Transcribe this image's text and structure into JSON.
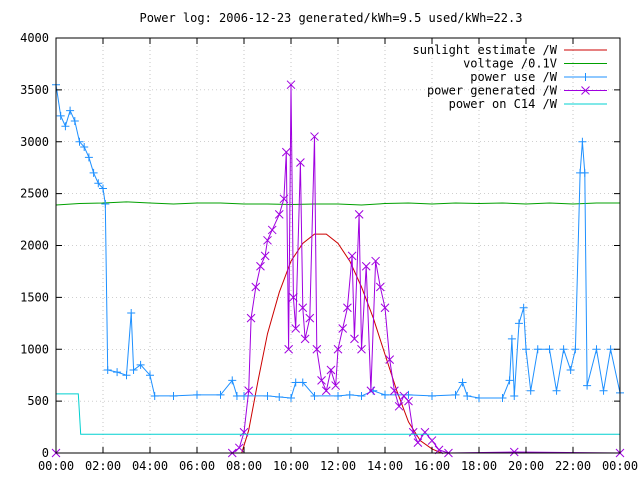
{
  "chart_data": {
    "type": "line",
    "title": "Power log: 2006-12-23 generated/kWh=9.5 used/kWh=22.3",
    "xlabel": "",
    "ylabel": "",
    "x_ticks": [
      "00:00",
      "02:00",
      "04:00",
      "06:00",
      "08:00",
      "10:00",
      "12:00",
      "14:00",
      "16:00",
      "18:00",
      "20:00",
      "22:00",
      "00:00"
    ],
    "xlim_hours": [
      0,
      24
    ],
    "y_ticks": [
      "0",
      "500",
      "1000",
      "1500",
      "2000",
      "2500",
      "3000",
      "3500",
      "4000"
    ],
    "ylim": [
      0,
      4000
    ],
    "grid": true,
    "legend_position": "top-right",
    "series": [
      {
        "name": "sunlight estimate /W",
        "color": "#cc0000",
        "marker": "none",
        "points": [
          [
            0,
            0
          ],
          [
            7.9,
            0
          ],
          [
            8.2,
            220
          ],
          [
            8.6,
            700
          ],
          [
            9.0,
            1150
          ],
          [
            9.5,
            1550
          ],
          [
            10.0,
            1850
          ],
          [
            10.5,
            2020
          ],
          [
            11.0,
            2110
          ],
          [
            11.5,
            2110
          ],
          [
            12.0,
            2020
          ],
          [
            12.5,
            1850
          ],
          [
            13.0,
            1600
          ],
          [
            13.5,
            1300
          ],
          [
            14.0,
            950
          ],
          [
            14.5,
            600
          ],
          [
            15.0,
            300
          ],
          [
            15.5,
            120
          ],
          [
            16.0,
            40
          ],
          [
            16.4,
            0
          ],
          [
            24,
            0
          ]
        ]
      },
      {
        "name": "voltage /0.1V",
        "color": "#00a000",
        "marker": "none",
        "points": [
          [
            0,
            2390
          ],
          [
            1,
            2405
          ],
          [
            2,
            2410
          ],
          [
            3,
            2420
          ],
          [
            4,
            2410
          ],
          [
            5,
            2400
          ],
          [
            6,
            2410
          ],
          [
            7,
            2410
          ],
          [
            8,
            2400
          ],
          [
            9,
            2400
          ],
          [
            10,
            2395
          ],
          [
            11,
            2400
          ],
          [
            12,
            2400
          ],
          [
            13,
            2390
          ],
          [
            14,
            2405
          ],
          [
            15,
            2410
          ],
          [
            16,
            2400
          ],
          [
            17,
            2410
          ],
          [
            18,
            2405
          ],
          [
            19,
            2410
          ],
          [
            20,
            2400
          ],
          [
            21,
            2410
          ],
          [
            22,
            2400
          ],
          [
            23,
            2410
          ],
          [
            24,
            2410
          ]
        ]
      },
      {
        "name": "power use /W",
        "color": "#1e90ff",
        "marker": "plus",
        "points": [
          [
            0,
            3550
          ],
          [
            0.2,
            3250
          ],
          [
            0.4,
            3150
          ],
          [
            0.6,
            3300
          ],
          [
            0.8,
            3200
          ],
          [
            1.0,
            3000
          ],
          [
            1.2,
            2950
          ],
          [
            1.4,
            2850
          ],
          [
            1.6,
            2700
          ],
          [
            1.8,
            2600
          ],
          [
            2.0,
            2550
          ],
          [
            2.1,
            2400
          ],
          [
            2.2,
            800
          ],
          [
            2.6,
            780
          ],
          [
            3.0,
            750
          ],
          [
            3.2,
            1350
          ],
          [
            3.3,
            800
          ],
          [
            3.6,
            850
          ],
          [
            4.0,
            750
          ],
          [
            4.2,
            550
          ],
          [
            5.0,
            550
          ],
          [
            6.0,
            560
          ],
          [
            7.0,
            560
          ],
          [
            7.5,
            700
          ],
          [
            7.7,
            550
          ],
          [
            8.0,
            550
          ],
          [
            9.0,
            550
          ],
          [
            9.5,
            540
          ],
          [
            10.0,
            530
          ],
          [
            10.2,
            680
          ],
          [
            10.5,
            680
          ],
          [
            11.0,
            550
          ],
          [
            12.0,
            550
          ],
          [
            12.5,
            560
          ],
          [
            13.0,
            550
          ],
          [
            13.5,
            600
          ],
          [
            14.0,
            560
          ],
          [
            15.0,
            560
          ],
          [
            16.0,
            550
          ],
          [
            17.0,
            560
          ],
          [
            17.3,
            680
          ],
          [
            17.5,
            550
          ],
          [
            18.0,
            530
          ],
          [
            19.0,
            530
          ],
          [
            19.3,
            700
          ],
          [
            19.4,
            1100
          ],
          [
            19.5,
            550
          ],
          [
            19.7,
            1250
          ],
          [
            19.9,
            1400
          ],
          [
            20.0,
            1000
          ],
          [
            20.2,
            600
          ],
          [
            20.5,
            1000
          ],
          [
            21.0,
            1000
          ],
          [
            21.3,
            600
          ],
          [
            21.6,
            1000
          ],
          [
            21.9,
            800
          ],
          [
            22.1,
            1000
          ],
          [
            22.3,
            2700
          ],
          [
            22.4,
            3000
          ],
          [
            22.5,
            2700
          ],
          [
            22.6,
            650
          ],
          [
            23.0,
            1000
          ],
          [
            23.3,
            600
          ],
          [
            23.6,
            1000
          ],
          [
            24,
            580
          ]
        ]
      },
      {
        "name": "power generated /W",
        "color": "#a000e0",
        "marker": "x",
        "points": [
          [
            0,
            0
          ],
          [
            7.5,
            0
          ],
          [
            7.8,
            50
          ],
          [
            8.0,
            200
          ],
          [
            8.2,
            600
          ],
          [
            8.3,
            1300
          ],
          [
            8.5,
            1600
          ],
          [
            8.7,
            1800
          ],
          [
            8.9,
            1900
          ],
          [
            9.0,
            2050
          ],
          [
            9.2,
            2150
          ],
          [
            9.5,
            2300
          ],
          [
            9.7,
            2450
          ],
          [
            9.8,
            2900
          ],
          [
            9.9,
            1000
          ],
          [
            10.0,
            3550
          ],
          [
            10.1,
            1500
          ],
          [
            10.2,
            1200
          ],
          [
            10.4,
            2800
          ],
          [
            10.5,
            1400
          ],
          [
            10.6,
            1100
          ],
          [
            10.8,
            1300
          ],
          [
            11.0,
            3050
          ],
          [
            11.1,
            1000
          ],
          [
            11.3,
            700
          ],
          [
            11.5,
            600
          ],
          [
            11.7,
            800
          ],
          [
            11.9,
            650
          ],
          [
            12.0,
            1000
          ],
          [
            12.2,
            1200
          ],
          [
            12.4,
            1400
          ],
          [
            12.6,
            1900
          ],
          [
            12.7,
            1100
          ],
          [
            12.9,
            2300
          ],
          [
            13.0,
            1000
          ],
          [
            13.2,
            1800
          ],
          [
            13.4,
            600
          ],
          [
            13.6,
            1850
          ],
          [
            13.8,
            1600
          ],
          [
            14.0,
            1400
          ],
          [
            14.2,
            900
          ],
          [
            14.4,
            600
          ],
          [
            14.6,
            450
          ],
          [
            14.8,
            550
          ],
          [
            15.0,
            500
          ],
          [
            15.2,
            200
          ],
          [
            15.4,
            100
          ],
          [
            15.7,
            200
          ],
          [
            16.0,
            120
          ],
          [
            16.3,
            30
          ],
          [
            16.7,
            0
          ],
          [
            19.5,
            10
          ],
          [
            24,
            0
          ]
        ]
      },
      {
        "name": "power on C14 /W",
        "color": "#00d0d0",
        "marker": "none",
        "points": [
          [
            0,
            570
          ],
          [
            0.95,
            570
          ],
          [
            1.05,
            180
          ],
          [
            24,
            180
          ]
        ]
      }
    ]
  }
}
